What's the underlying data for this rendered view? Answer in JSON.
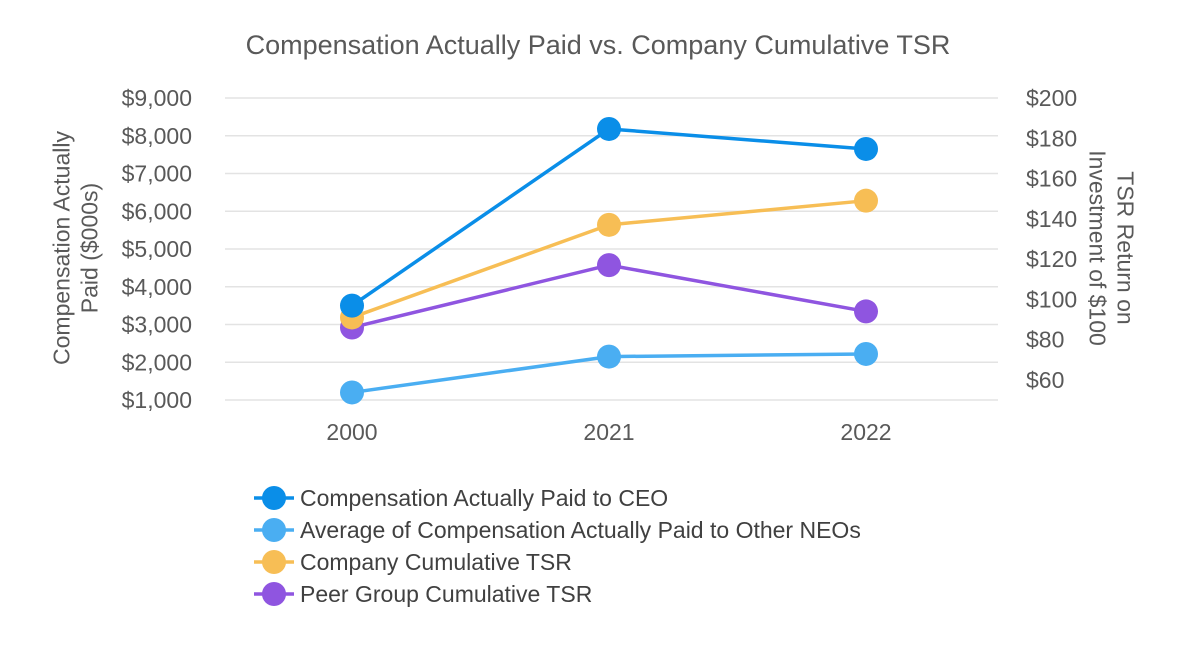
{
  "chart_data": {
    "type": "line",
    "title": "Compensation Actually Paid vs. Company Cumulative TSR",
    "categories": [
      "2000",
      "2021",
      "2022"
    ],
    "y_left": {
      "label_lines": [
        "Compensation Actually",
        "Paid ($000s)"
      ],
      "range": [
        1000,
        9000
      ],
      "ticks": [
        1000,
        2000,
        3000,
        4000,
        5000,
        6000,
        7000,
        8000,
        9000
      ],
      "tick_labels": [
        "$1,000",
        "$2,000",
        "$3,000",
        "$4,000",
        "$5,000",
        "$6,000",
        "$7,000",
        "$8,000",
        "$9,000"
      ]
    },
    "y_right": {
      "label_lines": [
        "TSR Return on",
        "Investment of $100"
      ],
      "range": [
        50,
        200
      ],
      "ticks": [
        60,
        80,
        100,
        120,
        140,
        160,
        180,
        200
      ],
      "tick_labels": [
        "$60",
        "$80",
        "$100",
        "$120",
        "$140",
        "$160",
        "$180",
        "$200"
      ]
    },
    "grid": true,
    "legend_position": "bottom",
    "series": [
      {
        "name": "Compensation Actually Paid to CEO",
        "axis": "left",
        "values": [
          3500,
          8180,
          7650
        ],
        "color": "#0a8ee8"
      },
      {
        "name": "Average of Compensation Actually Paid to Other NEOs",
        "axis": "left",
        "values": [
          1200,
          2150,
          2220
        ],
        "color": "#4aaef2"
      },
      {
        "name": "Company Cumulative TSR",
        "axis": "right",
        "values": [
          91,
          137,
          149
        ],
        "color": "#f7be55"
      },
      {
        "name": "Peer Group Cumulative TSR",
        "axis": "right",
        "values": [
          86,
          117,
          94
        ],
        "color": "#8f55e0"
      }
    ]
  }
}
